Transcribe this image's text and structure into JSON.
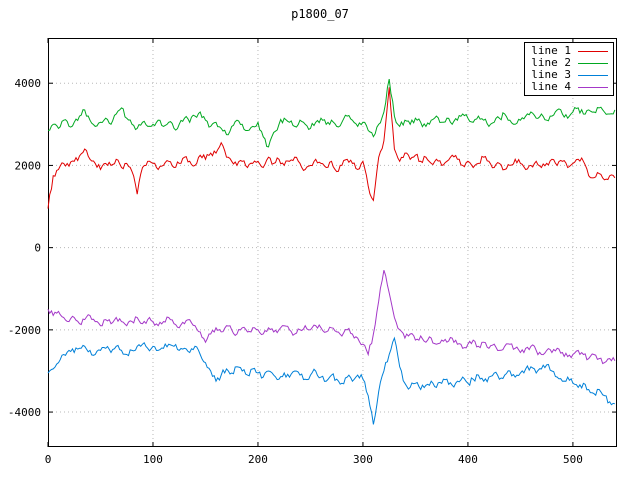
{
  "window": {
    "title": "p1800_07"
  },
  "chart_data": {
    "type": "line",
    "title": "p1800_07",
    "xlabel": "",
    "ylabel": "",
    "xlim": [
      0,
      542
    ],
    "ylim": [
      -4850,
      5100
    ],
    "xticks": [
      0,
      100,
      200,
      300,
      400,
      500
    ],
    "yticks": [
      -4000,
      -2000,
      0,
      2000,
      4000
    ],
    "grid": "dotted",
    "grid_color": "#b8b8b8",
    "border_color": "#000000",
    "legend_position": "top-right",
    "x_start": 0,
    "x_step": 5,
    "series": [
      {
        "name": "line 1",
        "color": "#e00000",
        "noise": 150,
        "values": [
          950,
          1750,
          1900,
          2050,
          1980,
          2100,
          2230,
          2400,
          2150,
          2050,
          1900,
          2050,
          2000,
          2150,
          1950,
          2050,
          1850,
          1300,
          1950,
          2100,
          2050,
          1900,
          2000,
          2100,
          1950,
          2050,
          2200,
          2100,
          2000,
          2250,
          2150,
          2300,
          2300,
          2550,
          2200,
          2100,
          2000,
          2100,
          1950,
          2050,
          2100,
          1950,
          2200,
          2050,
          2150,
          2000,
          2100,
          2200,
          2050,
          1900,
          2000,
          2150,
          2050,
          1950,
          2100,
          1850,
          2000,
          2150,
          2050,
          1900,
          2100,
          1500,
          1150,
          2200,
          2600,
          3900,
          2400,
          2100,
          2300,
          2150,
          2250,
          2100,
          2200,
          2050,
          2150,
          2000,
          2100,
          2250,
          2150,
          2000,
          2100,
          1950,
          2050,
          2200,
          2100,
          1950,
          2050,
          1900,
          2000,
          2150,
          2050,
          1900,
          2000,
          2100,
          1950,
          2050,
          2150,
          2000,
          2100,
          1950,
          2050,
          2150,
          2100,
          1750,
          1700,
          1800,
          1650,
          1750,
          1700
        ]
      },
      {
        "name": "line 2",
        "color": "#00a820",
        "noise": 150,
        "values": [
          2850,
          3000,
          2900,
          3100,
          2950,
          3050,
          3200,
          3350,
          3100,
          2950,
          3050,
          3150,
          3000,
          3250,
          3400,
          3150,
          3000,
          2900,
          3050,
          2950,
          3000,
          3100,
          2950,
          3050,
          2900,
          3000,
          3150,
          3050,
          3200,
          3300,
          3100,
          2950,
          3050,
          2900,
          2750,
          2950,
          3100,
          3000,
          2850,
          2950,
          3050,
          2700,
          2450,
          2800,
          3000,
          3150,
          3050,
          2950,
          3100,
          3000,
          2900,
          3050,
          3150,
          3000,
          3100,
          2950,
          3050,
          3200,
          3100,
          2950,
          3050,
          2850,
          2700,
          3000,
          3300,
          4100,
          3200,
          2950,
          3100,
          3000,
          3150,
          3050,
          2950,
          3100,
          3200,
          3050,
          3150,
          3000,
          3100,
          3250,
          3150,
          3050,
          3200,
          3100,
          2950,
          3050,
          3150,
          3250,
          3100,
          3000,
          3100,
          3200,
          3300,
          3150,
          3250,
          3100,
          3200,
          3350,
          3250,
          3150,
          3300,
          3400,
          3250,
          3350,
          3300,
          3400,
          3300,
          3250,
          3350
        ]
      },
      {
        "name": "line 3",
        "color": "#0080d8",
        "noise": 160,
        "values": [
          -3050,
          -2950,
          -2800,
          -2600,
          -2500,
          -2550,
          -2450,
          -2400,
          -2500,
          -2600,
          -2500,
          -2450,
          -2550,
          -2400,
          -2500,
          -2600,
          -2500,
          -2400,
          -2350,
          -2450,
          -2400,
          -2500,
          -2450,
          -2350,
          -2400,
          -2500,
          -2450,
          -2550,
          -2400,
          -2600,
          -2800,
          -3000,
          -3250,
          -3100,
          -2950,
          -3050,
          -2900,
          -3000,
          -3100,
          -2950,
          -3050,
          -3150,
          -3000,
          -3100,
          -3200,
          -3050,
          -3150,
          -3000,
          -3100,
          -3200,
          -3100,
          -3000,
          -3150,
          -3250,
          -3100,
          -3200,
          -3300,
          -3150,
          -3250,
          -3100,
          -3200,
          -3600,
          -4300,
          -3500,
          -3000,
          -2600,
          -2200,
          -2900,
          -3300,
          -3400,
          -3300,
          -3450,
          -3350,
          -3250,
          -3400,
          -3300,
          -3200,
          -3350,
          -3250,
          -3150,
          -3300,
          -3200,
          -3100,
          -3250,
          -3150,
          -3050,
          -3200,
          -3100,
          -3000,
          -3150,
          -3050,
          -2950,
          -2900,
          -3050,
          -2950,
          -2850,
          -3000,
          -3150,
          -3250,
          -3150,
          -3300,
          -3400,
          -3300,
          -3450,
          -3550,
          -3450,
          -3600,
          -3750,
          -3800
        ]
      },
      {
        "name": "line 4",
        "color": "#a438c8",
        "noise": 140,
        "values": [
          -1500,
          -1650,
          -1550,
          -1700,
          -1800,
          -1700,
          -1850,
          -1750,
          -1650,
          -1800,
          -1900,
          -1750,
          -1850,
          -1700,
          -1800,
          -1900,
          -1800,
          -1700,
          -1850,
          -1750,
          -1800,
          -1900,
          -1800,
          -1700,
          -1850,
          -1950,
          -1850,
          -1750,
          -1900,
          -2050,
          -2300,
          -2100,
          -1950,
          -2050,
          -1900,
          -2000,
          -2100,
          -1950,
          -2050,
          -1950,
          -2000,
          -2100,
          -1950,
          -2050,
          -2000,
          -1900,
          -2000,
          -2100,
          -2000,
          -1900,
          -2000,
          -1900,
          -1950,
          -2050,
          -1950,
          -2050,
          -2150,
          -2000,
          -2100,
          -2200,
          -2350,
          -2600,
          -2100,
          -1300,
          -550,
          -1100,
          -1700,
          -2000,
          -2200,
          -2100,
          -2250,
          -2150,
          -2300,
          -2200,
          -2350,
          -2250,
          -2300,
          -2200,
          -2350,
          -2450,
          -2350,
          -2250,
          -2400,
          -2300,
          -2450,
          -2350,
          -2500,
          -2400,
          -2350,
          -2450,
          -2550,
          -2450,
          -2400,
          -2500,
          -2600,
          -2500,
          -2550,
          -2450,
          -2550,
          -2650,
          -2600,
          -2500,
          -2600,
          -2700,
          -2600,
          -2700,
          -2800,
          -2700,
          -2750
        ]
      }
    ]
  }
}
